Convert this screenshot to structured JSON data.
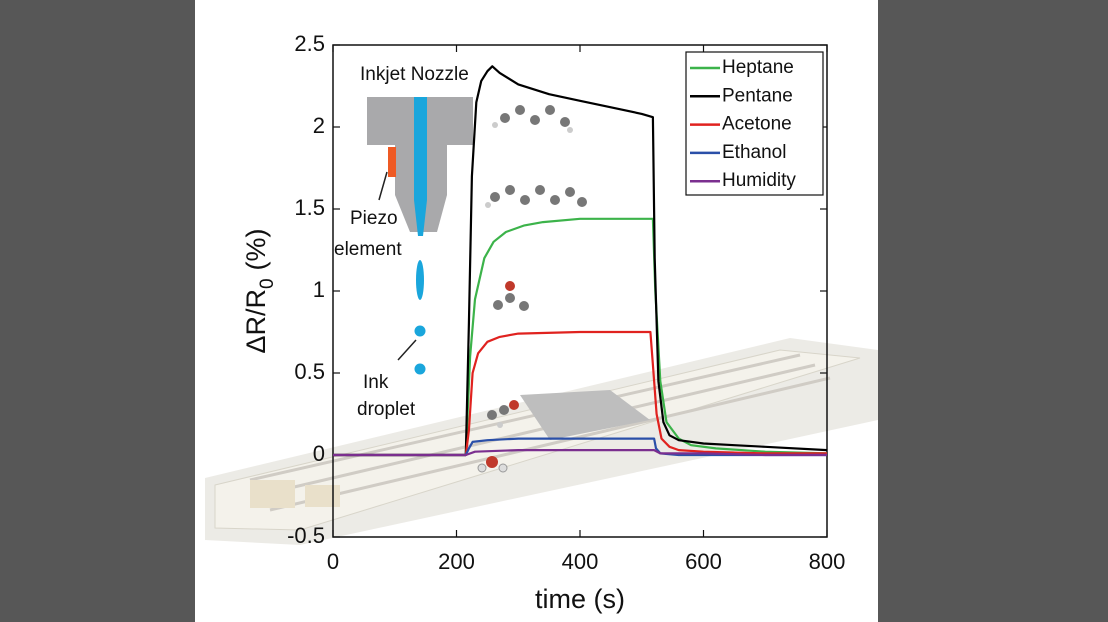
{
  "chart_data": {
    "type": "line",
    "xlabel": "time (s)",
    "ylabel": "ΔR/R",
    "ylabel_subscript": "0",
    "ylabel_suffix": "(%)",
    "xlim": [
      0,
      800
    ],
    "xticks": [
      0,
      200,
      400,
      600,
      800
    ],
    "ylim": [
      -0.5,
      2.5
    ],
    "yticks": [
      -0.5,
      0,
      0.5,
      1,
      1.5,
      2,
      2.5
    ],
    "legend": "upper right",
    "annotations": [
      "Inkjet Nozzle",
      "Piezo",
      "element",
      "Ink",
      "droplet"
    ],
    "series": [
      {
        "name": "Heptane",
        "color": "#3cb34a",
        "x": [
          0,
          100,
          215,
          222,
          230,
          245,
          260,
          280,
          310,
          340,
          400,
          460,
          518,
          522,
          530,
          540,
          560,
          580,
          620,
          700,
          800
        ],
        "values": [
          0,
          0,
          0,
          0.6,
          0.95,
          1.2,
          1.3,
          1.36,
          1.4,
          1.42,
          1.44,
          1.44,
          1.44,
          1.0,
          0.45,
          0.2,
          0.1,
          0.06,
          0.04,
          0.02,
          0.01
        ]
      },
      {
        "name": "Pentane",
        "color": "#000000",
        "x": [
          0,
          100,
          215,
          220,
          225,
          232,
          240,
          250,
          258,
          270,
          300,
          350,
          400,
          450,
          500,
          518,
          521,
          527,
          535,
          545,
          560,
          600,
          650,
          700,
          800
        ],
        "values": [
          0,
          0,
          0,
          0.8,
          1.7,
          2.15,
          2.28,
          2.34,
          2.37,
          2.33,
          2.26,
          2.2,
          2.16,
          2.12,
          2.08,
          2.06,
          1.2,
          0.45,
          0.2,
          0.12,
          0.09,
          0.07,
          0.06,
          0.05,
          0.03
        ]
      },
      {
        "name": "Acetone",
        "color": "#e0221f",
        "x": [
          0,
          100,
          215,
          220,
          226,
          235,
          250,
          270,
          300,
          400,
          514,
          518,
          524,
          532,
          545,
          560,
          600,
          700,
          800
        ],
        "values": [
          0,
          0,
          0,
          0.15,
          0.5,
          0.62,
          0.69,
          0.72,
          0.74,
          0.75,
          0.75,
          0.55,
          0.25,
          0.1,
          0.05,
          0.03,
          0.02,
          0.01,
          0.01
        ]
      },
      {
        "name": "Ethanol",
        "color": "#2a4fa8",
        "x": [
          0,
          100,
          215,
          220,
          226,
          250,
          300,
          400,
          520,
          523,
          530,
          560,
          700,
          800
        ],
        "values": [
          0,
          0,
          0,
          0.04,
          0.08,
          0.09,
          0.1,
          0.1,
          0.1,
          0.04,
          0.01,
          0.0,
          0.0,
          0.0
        ]
      },
      {
        "name": "Humidity",
        "color": "#7b2f8f",
        "x": [
          0,
          100,
          215,
          230,
          300,
          400,
          520,
          530,
          600,
          700,
          800
        ],
        "values": [
          0,
          0,
          0,
          0.02,
          0.03,
          0.03,
          0.03,
          0.01,
          0.01,
          0.0,
          0.0
        ]
      }
    ]
  }
}
